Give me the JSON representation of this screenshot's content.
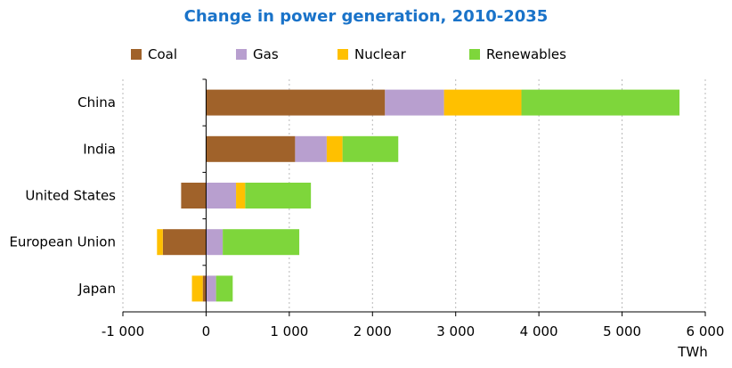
{
  "chart_data": {
    "type": "bar",
    "orientation": "horizontal",
    "stacked": true,
    "title": "Change in power generation, 2010-2035",
    "unit": "TWh",
    "categories": [
      "China",
      "India",
      "United States",
      "European Union",
      "Japan"
    ],
    "series": [
      {
        "name": "Coal",
        "color": "#a0622a",
        "values": [
          2150,
          1070,
          -300,
          -520,
          -40
        ]
      },
      {
        "name": "Gas",
        "color": "#b89fcf",
        "values": [
          710,
          380,
          360,
          200,
          120
        ]
      },
      {
        "name": "Nuclear",
        "color": "#ffc000",
        "values": [
          930,
          190,
          110,
          -70,
          -130
        ]
      },
      {
        "name": "Renewables",
        "color": "#7ed63b",
        "values": [
          1900,
          670,
          790,
          920,
          200
        ]
      }
    ],
    "xlim": [
      -1000,
      6000
    ],
    "x_ticks": [
      -1000,
      0,
      1000,
      2000,
      3000,
      4000,
      5000,
      6000
    ],
    "x_tick_labels": [
      "-1 000",
      "0",
      "1 000",
      "2 000",
      "3 000",
      "4 000",
      "5 000",
      "6 000"
    ],
    "grid": "vertical-dashed",
    "legend_position": "top"
  }
}
